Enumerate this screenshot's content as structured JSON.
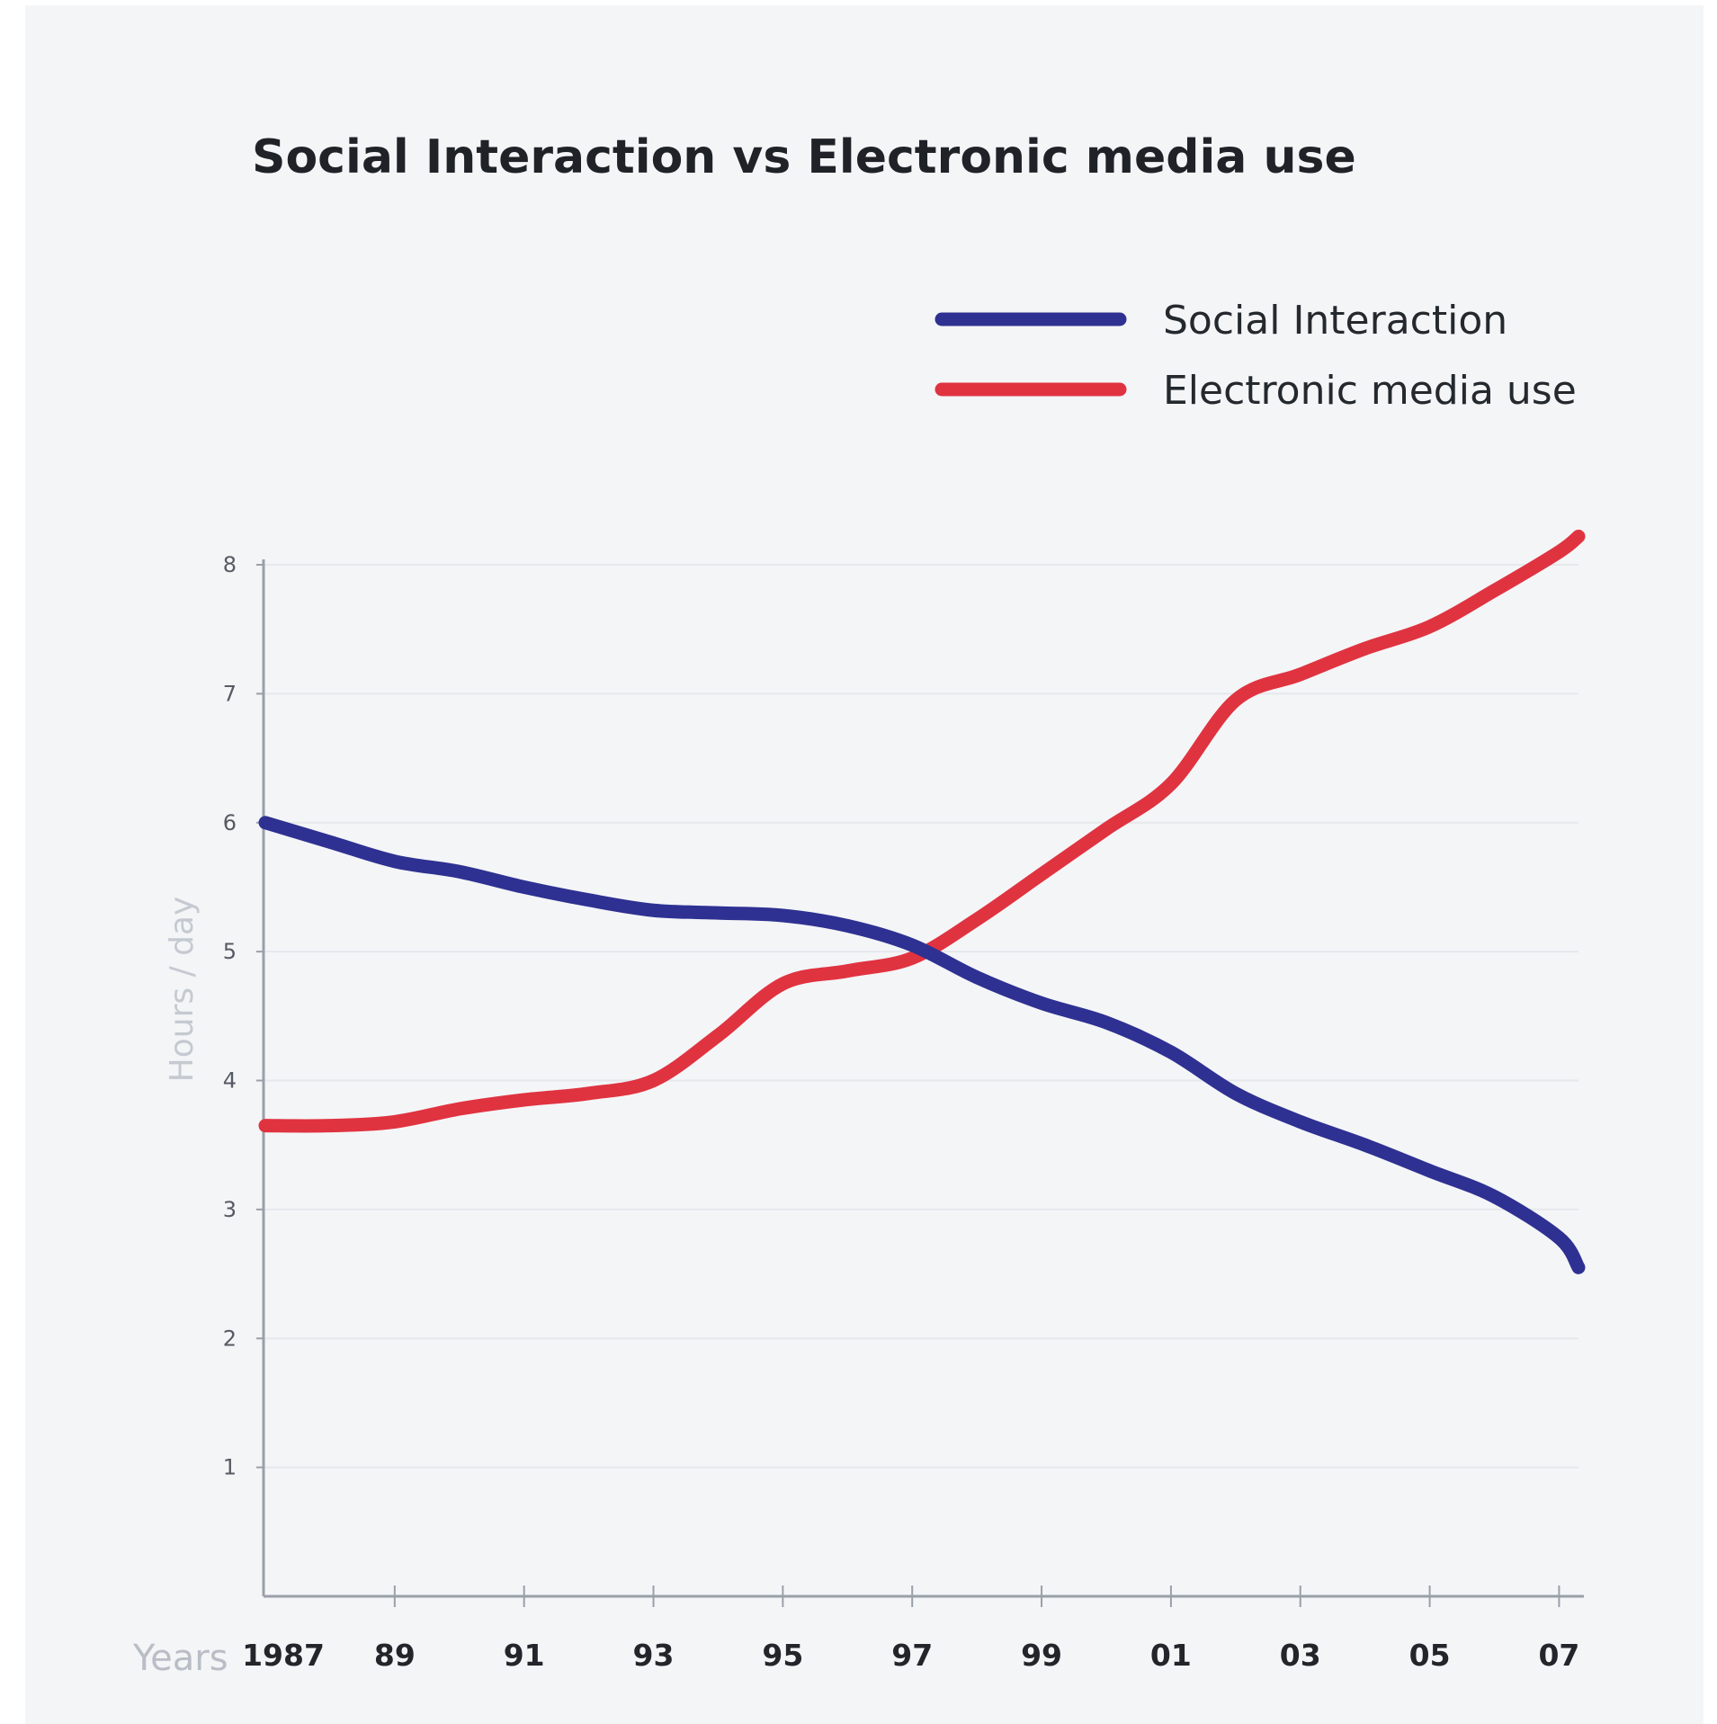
{
  "chart_data": {
    "type": "line",
    "title": "Social Interaction vs Electronic media use",
    "xlabel": "Years",
    "ylabel": "Hours / day",
    "ylim": [
      0,
      8
    ],
    "yticks": [
      "1",
      "2",
      "3",
      "4",
      "5",
      "6",
      "7",
      "8"
    ],
    "x_tick_labels": [
      "1987",
      "89",
      "91",
      "93",
      "95",
      "97",
      "99",
      "01",
      "03",
      "05",
      "07"
    ],
    "xlim": [
      1987,
      2007.3
    ],
    "grid": true,
    "legend_position": "top-right",
    "series": [
      {
        "name": "Social Interaction",
        "color": "#2e3192",
        "x": [
          1987,
          1988,
          1989,
          1990,
          1991,
          1992,
          1993,
          1994,
          1995,
          1996,
          1997,
          1998,
          1999,
          2000,
          2001,
          2002,
          2003,
          2004,
          2005,
          2006,
          2007,
          2007.3
        ],
        "values": [
          6.0,
          5.85,
          5.7,
          5.62,
          5.5,
          5.4,
          5.32,
          5.3,
          5.28,
          5.2,
          5.05,
          4.8,
          4.6,
          4.45,
          4.22,
          3.9,
          3.68,
          3.5,
          3.3,
          3.1,
          2.78,
          2.55
        ]
      },
      {
        "name": "Electronic media use",
        "color": "#e03340",
        "x": [
          1987,
          1988,
          1989,
          1990,
          1991,
          1992,
          1993,
          1994,
          1995,
          1996,
          1997,
          1998,
          1999,
          2000,
          2001,
          2002,
          2003,
          2004,
          2005,
          2006,
          2007,
          2007.3
        ],
        "values": [
          3.65,
          3.65,
          3.68,
          3.78,
          3.85,
          3.9,
          4.0,
          4.35,
          4.75,
          4.85,
          4.95,
          5.25,
          5.6,
          5.95,
          6.3,
          6.95,
          7.15,
          7.35,
          7.52,
          7.8,
          8.1,
          8.22
        ]
      }
    ]
  }
}
